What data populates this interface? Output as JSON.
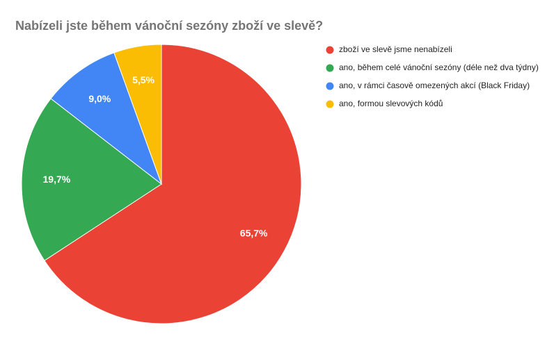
{
  "chart_data": {
    "type": "pie",
    "title": "Nabízeli jste během vánoční sezóny zboží ve slevě?",
    "categories": [
      "zboží ve slevě jsme nenabízeli",
      "ano, během celé vánoční sezóny (déle než dva týdny)",
      "ano, v rámci časově omezených akcí (Black Friday)",
      "ano, formou slevových kódů"
    ],
    "values": [
      65.7,
      19.7,
      9.0,
      5.5
    ],
    "value_labels": [
      "65,7%",
      "19,7%",
      "9,0%",
      "5,5%"
    ],
    "colors": [
      "#ea4335",
      "#34a853",
      "#4285f4",
      "#fbbc04"
    ],
    "legend": "right"
  }
}
